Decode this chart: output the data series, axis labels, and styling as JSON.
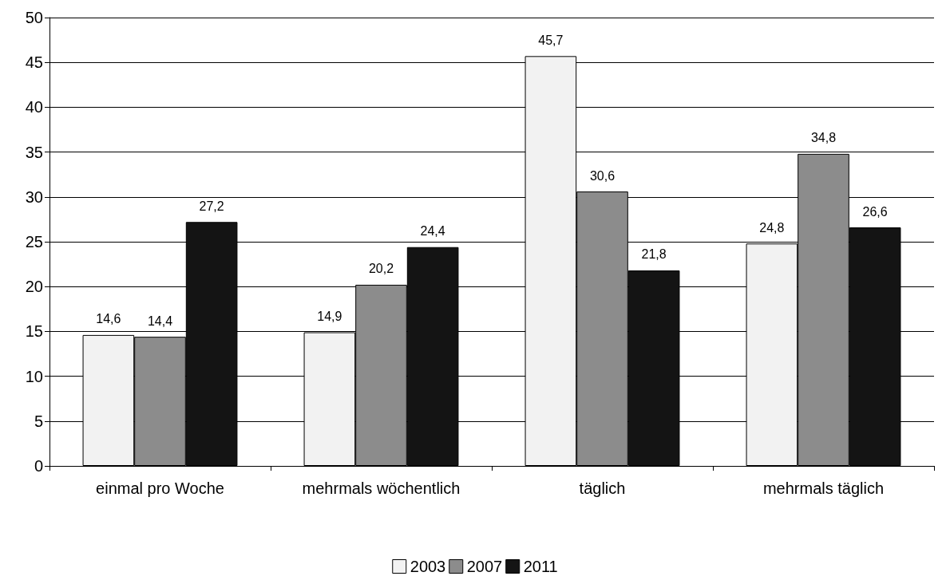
{
  "chart_data": {
    "type": "bar",
    "categories": [
      "einmal pro Woche",
      "mehrmals wöchentlich",
      "täglich",
      "mehrmals täglich"
    ],
    "series": [
      {
        "name": "2003",
        "color": "#f2f2f2",
        "values": [
          14.6,
          14.9,
          45.7,
          24.8
        ],
        "value_labels": [
          "14,6",
          "14,9",
          "45,7",
          "24,8"
        ]
      },
      {
        "name": "2007",
        "color": "#8c8c8c",
        "values": [
          14.4,
          20.2,
          30.6,
          34.8
        ],
        "value_labels": [
          "14,4",
          "20,2",
          "30,6",
          "34,8"
        ]
      },
      {
        "name": "2011",
        "color": "#141414",
        "values": [
          27.2,
          24.4,
          21.8,
          26.6
        ],
        "value_labels": [
          "27,2",
          "24,4",
          "21,8",
          "26,6"
        ]
      }
    ],
    "ylim": [
      0,
      50
    ],
    "yticks": [
      0,
      5,
      10,
      15,
      20,
      25,
      30,
      35,
      40,
      45,
      50
    ],
    "grid": "y",
    "legend": "bottom"
  }
}
